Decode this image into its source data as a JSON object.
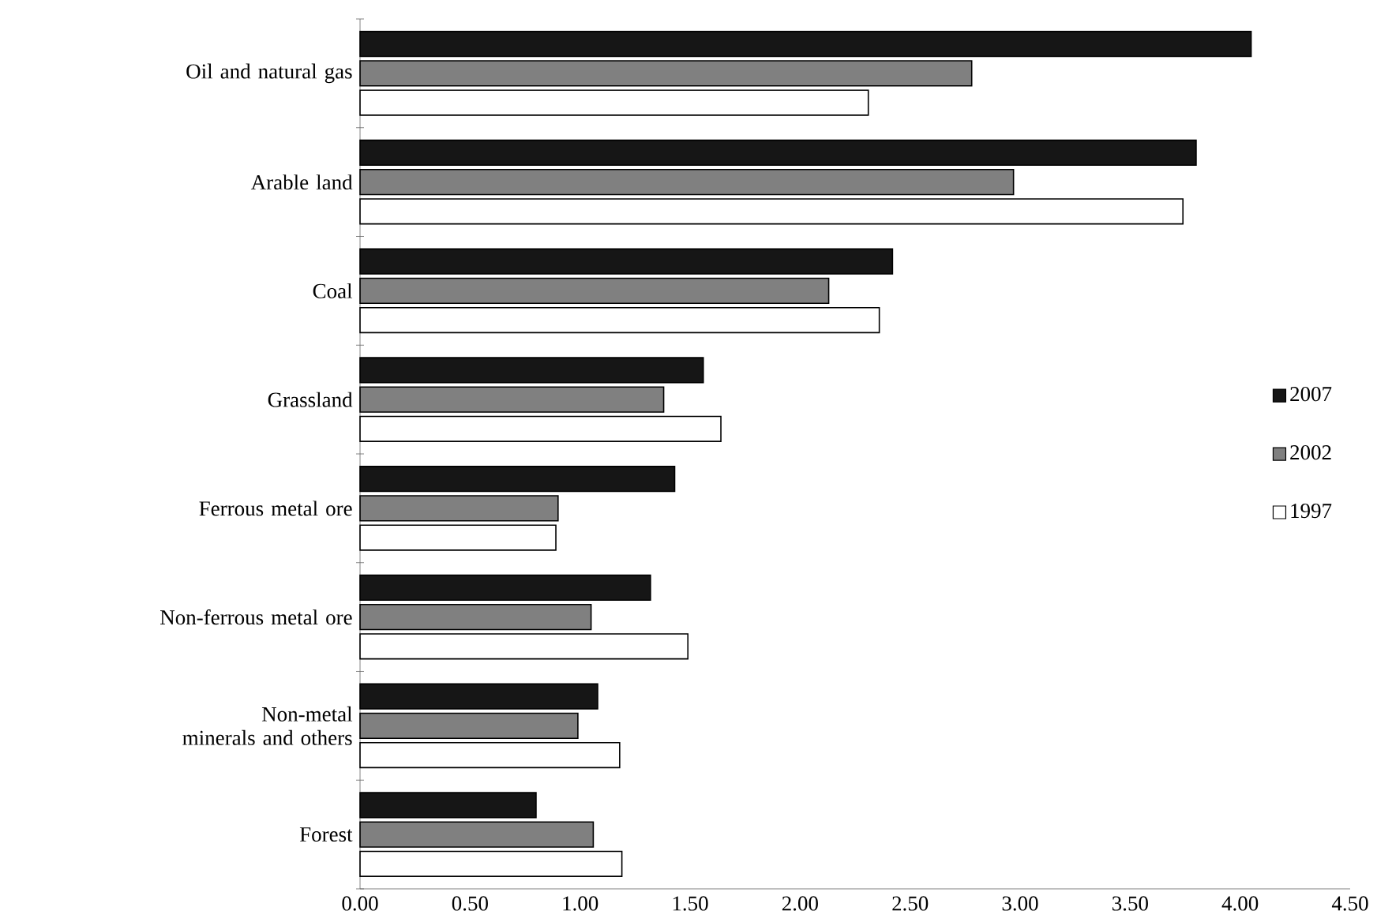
{
  "chart_data": {
    "type": "bar",
    "orientation": "horizontal",
    "categories": [
      "Oil and natural gas",
      "Arable land",
      "Coal",
      "Grassland",
      "Ferrous metal ore",
      "Non-ferrous metal ore",
      "Non-metal minerals and others",
      "Forest"
    ],
    "series": [
      {
        "name": "2007",
        "color": "#161616",
        "values": [
          4.05,
          3.8,
          2.42,
          1.56,
          1.43,
          1.32,
          1.08,
          0.8
        ]
      },
      {
        "name": "2002",
        "color": "#808080",
        "values": [
          2.78,
          2.97,
          2.13,
          1.38,
          0.9,
          1.05,
          0.99,
          1.06
        ]
      },
      {
        "name": "1997",
        "color": "#ffffff",
        "values": [
          2.31,
          3.74,
          2.36,
          1.64,
          0.89,
          1.49,
          1.18,
          1.19
        ]
      }
    ],
    "xlim": [
      0,
      4.5
    ],
    "xticks": [
      {
        "value": 0,
        "label": "0.00"
      },
      {
        "value": 0.5,
        "label": "0.50"
      },
      {
        "value": 1,
        "label": "1.00"
      },
      {
        "value": 1.5,
        "label": "1.50"
      },
      {
        "value": 2,
        "label": "2.00"
      },
      {
        "value": 2.5,
        "label": "2.50"
      },
      {
        "value": 3,
        "label": "3.00"
      },
      {
        "value": 3.5,
        "label": "3.50"
      },
      {
        "value": 4,
        "label": "4.00"
      },
      {
        "value": 4.5,
        "label": "4.50"
      }
    ],
    "legend": "right",
    "grid": false
  }
}
